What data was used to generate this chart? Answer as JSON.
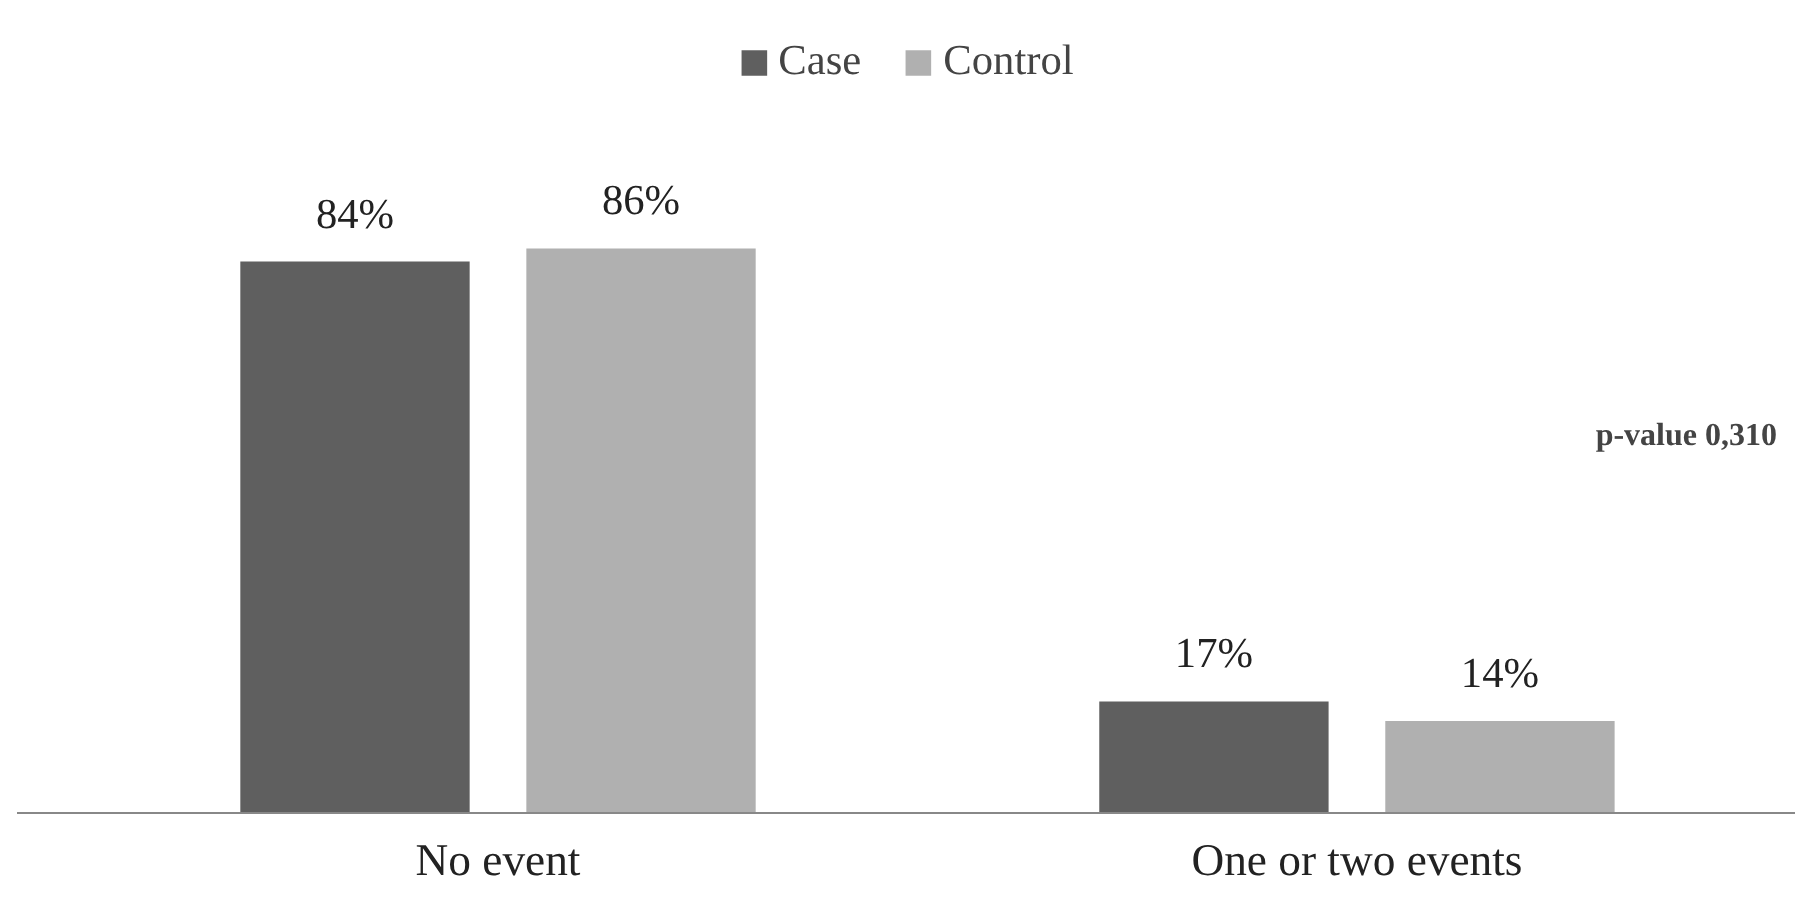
{
  "chart_data": {
    "type": "bar",
    "categories": [
      "No event",
      "One or two events"
    ],
    "series": [
      {
        "name": "Case",
        "color": "#5f5f5f",
        "values": [
          84,
          17
        ],
        "value_labels": [
          "84%",
          "17%"
        ]
      },
      {
        "name": "Control",
        "color": "#b0b0b0",
        "values": [
          86,
          14
        ],
        "value_labels": [
          "86%",
          "14%"
        ]
      }
    ],
    "legend": "top",
    "grid": false,
    "annotations": [
      "p-value 0,310"
    ]
  }
}
